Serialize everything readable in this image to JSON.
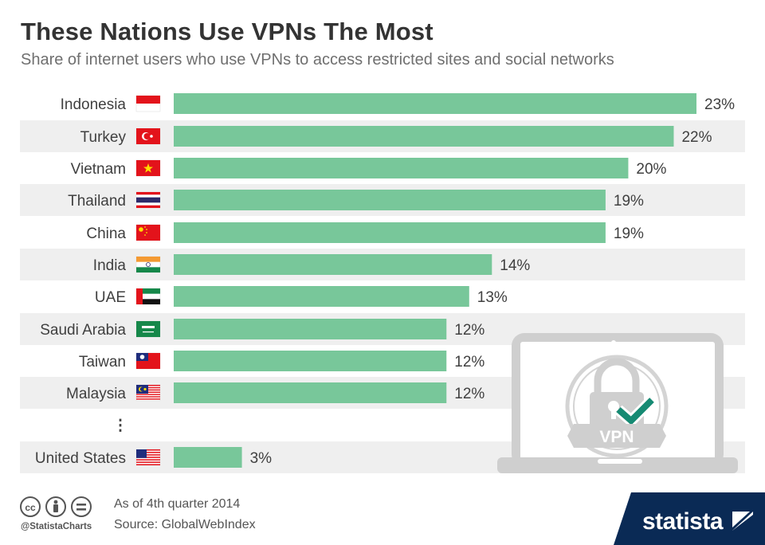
{
  "header": {
    "title": "These Nations Use VPNs The Most",
    "subtitle": "Share of internet users who use VPNs to access restricted sites and social networks"
  },
  "chart_data": {
    "type": "bar",
    "orientation": "horizontal",
    "title": "These Nations Use VPNs The Most",
    "subtitle": "Share of internet users who use VPNs to access restricted sites and social networks",
    "unit": "%",
    "categories": [
      "Indonesia",
      "Turkey",
      "Vietnam",
      "Thailand",
      "China",
      "India",
      "UAE",
      "Saudi Arabia",
      "Taiwan",
      "Malaysia",
      "United States"
    ],
    "values": [
      23,
      22,
      20,
      19,
      19,
      14,
      13,
      12,
      12,
      12,
      3
    ],
    "labels": [
      "23%",
      "22%",
      "20%",
      "19%",
      "19%",
      "14%",
      "13%",
      "12%",
      "12%",
      "12%",
      "3%"
    ],
    "gap_marker": "⋮",
    "gap_after_index": 9,
    "xlim": [
      0,
      23
    ],
    "bar_color": "#78c79a",
    "stripe_color": "#efefef"
  },
  "illustration": {
    "badge_text": "VPN",
    "icon": "laptop-padlock-icon"
  },
  "footer": {
    "note": "As of 4th quarter 2014",
    "source": "Source: GlobalWebIndex",
    "handle": "@StatistaCharts",
    "logo": "statista",
    "logo_bg": "#0a2a55"
  }
}
